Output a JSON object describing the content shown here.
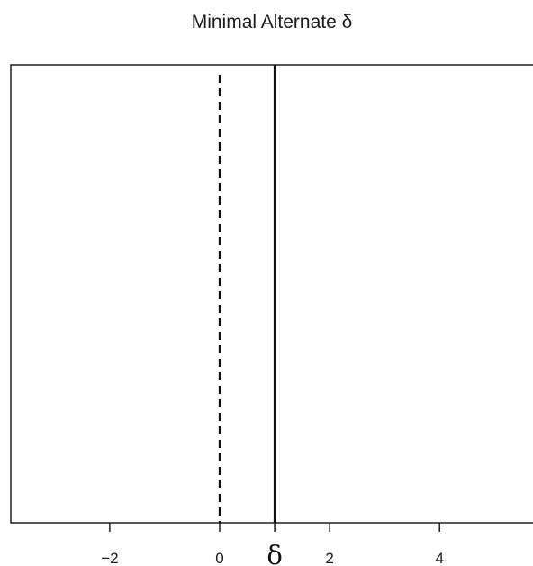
{
  "chart_data": {
    "type": "line",
    "title": "Minimal Alternate δ",
    "xlabel": "",
    "ylabel": "",
    "x_ticks": [
      {
        "value": -2,
        "label": "−2"
      },
      {
        "value": 0,
        "label": "0"
      },
      {
        "value": 2,
        "label": "2"
      },
      {
        "value": 4,
        "label": "4"
      }
    ],
    "xlim": [
      -3.8,
      5.7
    ],
    "grid": false,
    "y_axis_shown": false,
    "reference_lines": [
      {
        "name": "null",
        "x": 0,
        "style": "dashed"
      },
      {
        "name": "delta",
        "x": 1,
        "style": "solid"
      }
    ],
    "annotations": [
      {
        "text": "δ",
        "x": 1,
        "position": "below-axis"
      }
    ]
  }
}
